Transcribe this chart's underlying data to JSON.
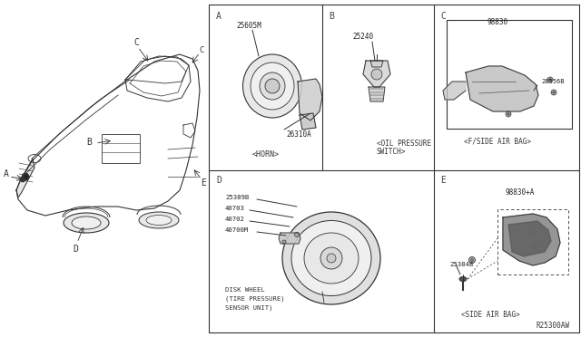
{
  "bg_color": "#ffffff",
  "line_color": "#333333",
  "fig_width": 6.4,
  "fig_height": 3.72,
  "dpi": 100,
  "part_number": "R25300AW",
  "sections": {
    "A": {
      "label": "A",
      "name": "<HORN>",
      "parts": [
        "25605M",
        "26310A"
      ]
    },
    "B": {
      "label": "B",
      "name": "<OIL PRESSURE\nSWITCH>",
      "parts": [
        "25240"
      ]
    },
    "C": {
      "label": "C",
      "name": "<F/SIDE AIR BAG>",
      "parts": [
        "98830",
        "28556B"
      ]
    },
    "D": {
      "label": "D",
      "name": "DISK WHEEL\n(TIRE PRESSURE)\nSENSOR UNIT)",
      "parts": [
        "25389B",
        "40703",
        "40702",
        "40700M"
      ]
    },
    "E": {
      "label": "E",
      "name": "<SIDE AIR BAG>",
      "parts": [
        "98830+A",
        "25384B"
      ]
    }
  }
}
